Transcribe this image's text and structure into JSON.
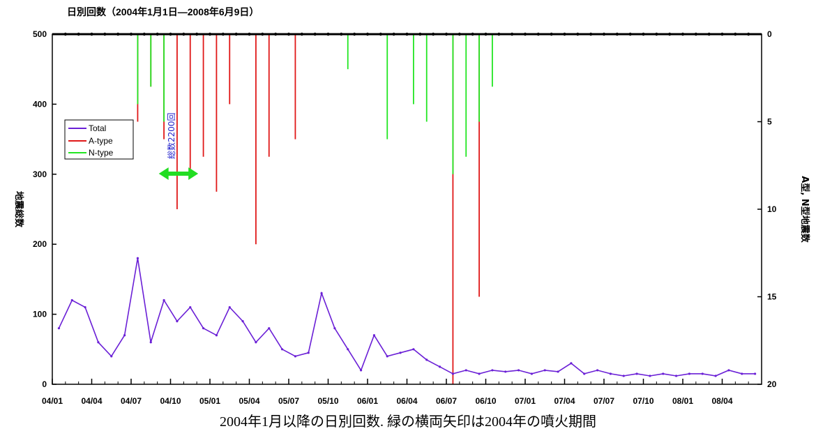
{
  "chart_data": {
    "type": "line",
    "title": "日別回数（2004年1月1日―2008年6月9日）",
    "caption": "2004年1月以降の日別回数. 緑の横両矢印は2004年の噴火期間",
    "ylabel_left": "地震総数",
    "ylabel_right": "A型, N型地震数",
    "y_left_lim": [
      0,
      500
    ],
    "y_left_ticks": [
      "0",
      "100",
      "200",
      "300",
      "400",
      "500"
    ],
    "y_right_lim": [
      0,
      20
    ],
    "y_right_inverted": true,
    "y_right_ticks": [
      "0",
      "5",
      "10",
      "15",
      "20"
    ],
    "x_ticks": [
      "04/01",
      "04/04",
      "04/07",
      "04/10",
      "05/01",
      "05/04",
      "05/07",
      "05/10",
      "06/01",
      "06/04",
      "06/07",
      "06/10",
      "07/01",
      "07/04",
      "07/07",
      "07/10",
      "08/01",
      "08/04"
    ],
    "legend": {
      "position": "left",
      "entries": [
        "Total",
        "A-type",
        "N-type"
      ]
    },
    "annotation": "総数2200回",
    "arrow_span": [
      "04/09",
      "04/12"
    ],
    "colors": {
      "total": "#6a1fd6",
      "atype": "#e01818",
      "ntype": "#22e622",
      "arrow": "#22dd22"
    },
    "series": [
      {
        "name": "Total",
        "axis": "left",
        "x": [
          "04/01",
          "04/02",
          "04/03",
          "04/04",
          "04/05",
          "04/06",
          "04/07",
          "04/08",
          "04/09",
          "04/10",
          "04/11",
          "04/12",
          "05/01",
          "05/02",
          "05/03",
          "05/04",
          "05/05",
          "05/06",
          "05/07",
          "05/08",
          "05/09",
          "05/10",
          "05/11",
          "05/12",
          "06/01",
          "06/02",
          "06/03",
          "06/04",
          "06/05",
          "06/06",
          "06/07",
          "06/08",
          "06/09",
          "06/10",
          "06/11",
          "06/12",
          "07/01",
          "07/02",
          "07/03",
          "07/04",
          "07/05",
          "07/06",
          "07/07",
          "07/08",
          "07/09",
          "07/10",
          "07/11",
          "07/12",
          "08/01",
          "08/02",
          "08/03",
          "08/04",
          "08/05",
          "08/06"
        ],
        "values": [
          80,
          120,
          110,
          60,
          40,
          70,
          180,
          60,
          120,
          90,
          110,
          80,
          70,
          110,
          90,
          60,
          80,
          50,
          40,
          45,
          130,
          80,
          50,
          20,
          70,
          40,
          45,
          50,
          35,
          25,
          15,
          20,
          15,
          20,
          18,
          20,
          15,
          20,
          18,
          30,
          15,
          20,
          15,
          12,
          15,
          12,
          15,
          12,
          15,
          15,
          12,
          20,
          15,
          15
        ]
      },
      {
        "name": "A-type",
        "axis": "right",
        "x": [
          "04/07",
          "04/08",
          "04/09",
          "04/10",
          "04/11",
          "04/12",
          "05/01",
          "05/02",
          "05/04",
          "05/05",
          "05/07",
          "06/07",
          "06/09"
        ],
        "values": [
          5,
          3,
          6,
          10,
          8,
          7,
          9,
          4,
          12,
          7,
          6,
          20,
          15
        ]
      },
      {
        "name": "N-type",
        "axis": "right",
        "x": [
          "04/07",
          "04/08",
          "04/09",
          "05/11",
          "06/02",
          "06/04",
          "06/05",
          "06/07",
          "06/08",
          "06/09",
          "06/10"
        ],
        "values": [
          4,
          3,
          5,
          2,
          6,
          4,
          5,
          8,
          7,
          5,
          3
        ]
      }
    ]
  }
}
